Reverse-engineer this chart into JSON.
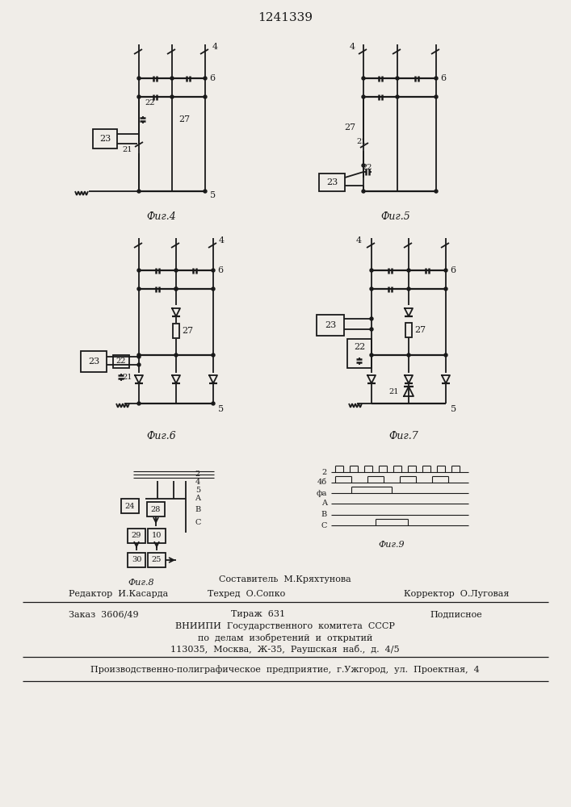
{
  "title": "1241339",
  "bg_color": "#f0ede8",
  "line_color": "#1a1a1a",
  "fig4_caption": "Фиг.4",
  "fig5_caption": "Фиг.5",
  "fig6_caption": "Фиг.6",
  "fig7_caption": "Фиг.7",
  "fig8_caption": "Фиг.8",
  "fig9_caption": "Фиг.9"
}
